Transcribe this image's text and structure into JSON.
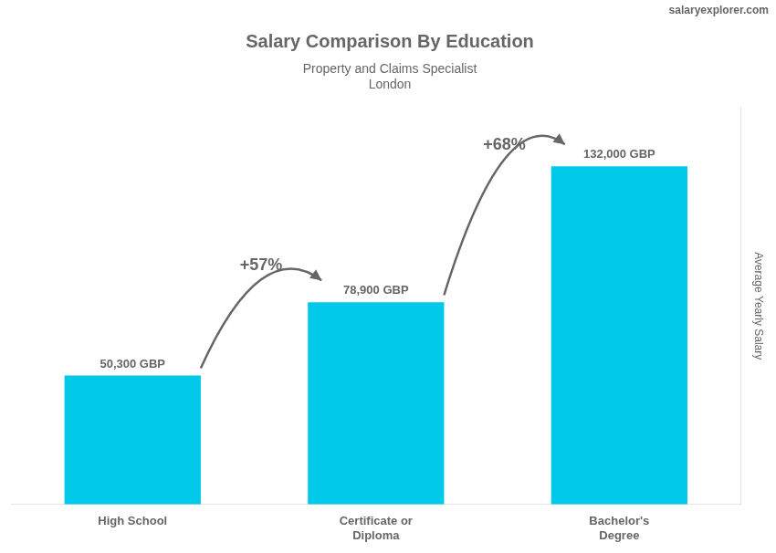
{
  "chart_data": {
    "type": "bar",
    "title": "Salary Comparison By Education",
    "subtitle": [
      "Property and Claims Specialist",
      "London"
    ],
    "y_label": "Average Yearly Salary",
    "annotations": [
      "+57%",
      "+68%",
      "salaryexplorer.com"
    ],
    "categories": [
      "High School",
      "Certificate or\nDiploma",
      "Bachelor's\nDegree"
    ],
    "values": [
      50300,
      78900,
      132000
    ],
    "value_labels": [
      "50,300 GBP",
      "78,900 GBP",
      "132,000 GBP"
    ],
    "data_labels": true,
    "color": "#00c8e8",
    "ylim": [
      0,
      155000
    ],
    "grid": false,
    "tick_labels": "x"
  }
}
